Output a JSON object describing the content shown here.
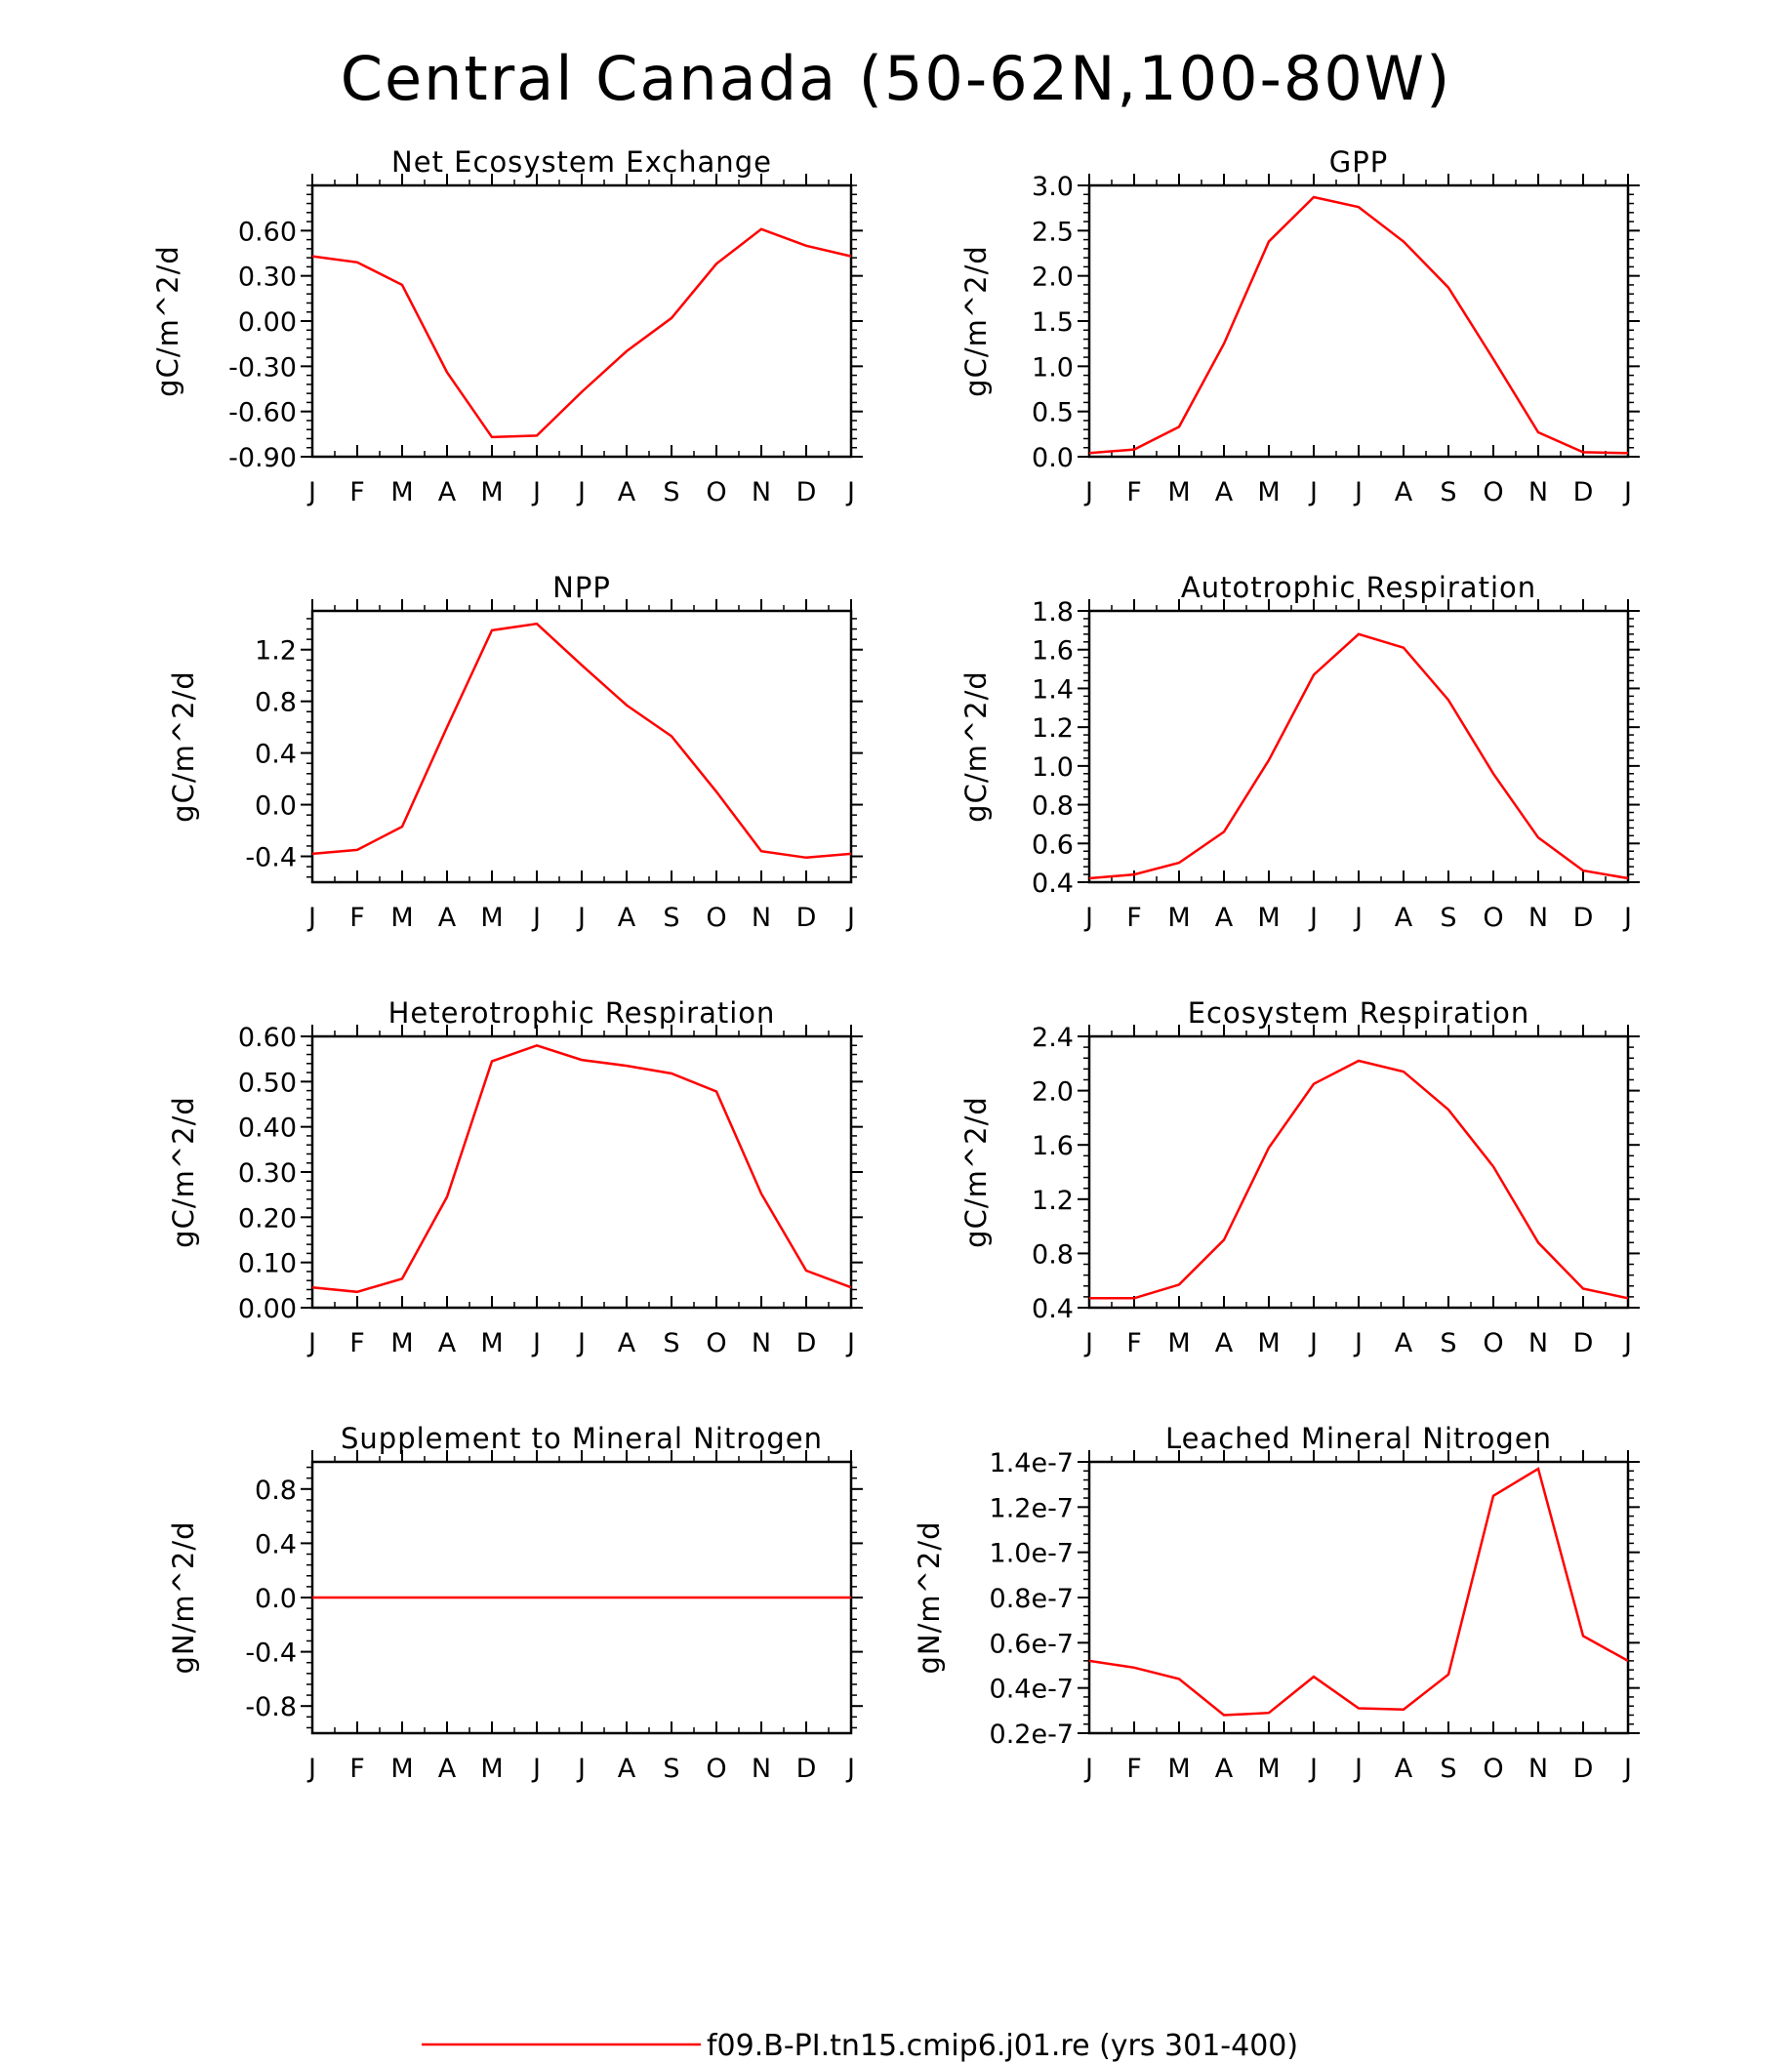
{
  "title": "Central Canada (50-62N,100-80W)",
  "legend": {
    "label": "f09.B-PI.tn15.cmip6.j01.re (yrs 301-400)",
    "color": "#ff0000"
  },
  "chart_data": [
    {
      "type": "line",
      "title": "Net Ecosystem Exchange",
      "ylabel": "gC/m^2/d",
      "xticks": [
        "J",
        "F",
        "M",
        "A",
        "M",
        "J",
        "J",
        "A",
        "S",
        "O",
        "N",
        "D",
        "J"
      ],
      "ylim": [
        -0.9,
        0.9
      ],
      "yticks": [
        -0.9,
        -0.6,
        -0.3,
        0.0,
        0.3,
        0.6
      ],
      "ytick_labels": [
        "-0.90",
        "-0.60",
        "-0.30",
        "0.00",
        "0.30",
        "0.60"
      ],
      "series": [
        {
          "values": [
            0.43,
            0.39,
            0.24,
            -0.34,
            -0.77,
            -0.76,
            -0.47,
            -0.2,
            0.02,
            0.38,
            0.61,
            0.5,
            0.43
          ]
        }
      ]
    },
    {
      "type": "line",
      "title": "GPP",
      "ylabel": "gC/m^2/d",
      "xticks": [
        "J",
        "F",
        "M",
        "A",
        "M",
        "J",
        "J",
        "A",
        "S",
        "O",
        "N",
        "D",
        "J"
      ],
      "ylim": [
        0,
        3.0
      ],
      "yticks": [
        0,
        0.5,
        1.0,
        1.5,
        2.0,
        2.5,
        3.0
      ],
      "ytick_labels": [
        "0.0",
        "0.5",
        "1.0",
        "1.5",
        "2.0",
        "2.5",
        "3.0"
      ],
      "series": [
        {
          "values": [
            0.04,
            0.08,
            0.33,
            1.25,
            2.38,
            2.87,
            2.76,
            2.38,
            1.87,
            1.08,
            0.27,
            0.05,
            0.04
          ]
        }
      ]
    },
    {
      "type": "line",
      "title": "NPP",
      "ylabel": "gC/m^2/d",
      "xticks": [
        "J",
        "F",
        "M",
        "A",
        "M",
        "J",
        "J",
        "A",
        "S",
        "O",
        "N",
        "D",
        "J"
      ],
      "ylim": [
        -0.6,
        1.5
      ],
      "yticks": [
        -0.4,
        0.0,
        0.4,
        0.8,
        1.2
      ],
      "ytick_labels": [
        "-0.4",
        "0.0",
        "0.4",
        "0.8",
        "1.2"
      ],
      "series": [
        {
          "values": [
            -0.38,
            -0.35,
            -0.17,
            0.6,
            1.35,
            1.4,
            1.08,
            0.77,
            0.53,
            0.1,
            -0.36,
            -0.41,
            -0.38
          ]
        }
      ]
    },
    {
      "type": "line",
      "title": "Autotrophic Respiration",
      "ylabel": "gC/m^2/d",
      "xticks": [
        "J",
        "F",
        "M",
        "A",
        "M",
        "J",
        "J",
        "A",
        "S",
        "O",
        "N",
        "D",
        "J"
      ],
      "ylim": [
        0.4,
        1.8
      ],
      "yticks": [
        0.4,
        0.6,
        0.8,
        1.0,
        1.2,
        1.4,
        1.6,
        1.8
      ],
      "ytick_labels": [
        "0.4",
        "0.6",
        "0.8",
        "1.0",
        "1.2",
        "1.4",
        "1.6",
        "1.8"
      ],
      "series": [
        {
          "values": [
            0.42,
            0.44,
            0.5,
            0.66,
            1.03,
            1.47,
            1.68,
            1.61,
            1.34,
            0.96,
            0.63,
            0.46,
            0.42
          ]
        }
      ]
    },
    {
      "type": "line",
      "title": "Heterotrophic Respiration",
      "ylabel": "gC/m^2/d",
      "xticks": [
        "J",
        "F",
        "M",
        "A",
        "M",
        "J",
        "J",
        "A",
        "S",
        "O",
        "N",
        "D",
        "J"
      ],
      "ylim": [
        0,
        0.6
      ],
      "yticks": [
        0,
        0.1,
        0.2,
        0.3,
        0.4,
        0.5,
        0.6
      ],
      "ytick_labels": [
        "0.00",
        "0.10",
        "0.20",
        "0.30",
        "0.40",
        "0.50",
        "0.60"
      ],
      "series": [
        {
          "values": [
            0.045,
            0.035,
            0.064,
            0.245,
            0.545,
            0.58,
            0.548,
            0.535,
            0.518,
            0.478,
            0.252,
            0.082,
            0.045
          ]
        }
      ]
    },
    {
      "type": "line",
      "title": "Ecosystem Respiration",
      "ylabel": "gC/m^2/d",
      "xticks": [
        "J",
        "F",
        "M",
        "A",
        "M",
        "J",
        "J",
        "A",
        "S",
        "O",
        "N",
        "D",
        "J"
      ],
      "ylim": [
        0.4,
        2.4
      ],
      "yticks": [
        0.4,
        0.8,
        1.2,
        1.6,
        2.0,
        2.4
      ],
      "ytick_labels": [
        "0.4",
        "0.8",
        "1.2",
        "1.6",
        "2.0",
        "2.4"
      ],
      "series": [
        {
          "values": [
            0.47,
            0.47,
            0.57,
            0.9,
            1.58,
            2.05,
            2.22,
            2.14,
            1.86,
            1.44,
            0.88,
            0.54,
            0.47
          ]
        }
      ]
    },
    {
      "type": "line",
      "title": "Supplement to Mineral Nitrogen",
      "ylabel": "gN/m^2/d",
      "xticks": [
        "J",
        "F",
        "M",
        "A",
        "M",
        "J",
        "J",
        "A",
        "S",
        "O",
        "N",
        "D",
        "J"
      ],
      "ylim": [
        -1.0,
        1.0
      ],
      "yticks": [
        -0.8,
        -0.4,
        0.0,
        0.4,
        0.8
      ],
      "ytick_labels": [
        "-0.8",
        "-0.4",
        "0.0",
        "0.4",
        "0.8"
      ],
      "series": [
        {
          "values": [
            0,
            0,
            0,
            0,
            0,
            0,
            0,
            0,
            0,
            0,
            0,
            0,
            0
          ]
        }
      ]
    },
    {
      "type": "line",
      "title": "Leached Mineral Nitrogen",
      "ylabel": "gN/m^2/d",
      "xticks": [
        "J",
        "F",
        "M",
        "A",
        "M",
        "J",
        "J",
        "A",
        "S",
        "O",
        "N",
        "D",
        "J"
      ],
      "ylim": [
        2e-08,
        1.4e-07
      ],
      "yticks": [
        2e-08,
        4e-08,
        6e-08,
        8e-08,
        1e-07,
        1.2e-07,
        1.4e-07
      ],
      "ytick_labels": [
        "0.2e-7",
        "0.4e-7",
        "0.6e-7",
        "0.8e-7",
        "1.0e-7",
        "1.2e-7",
        "1.4e-7"
      ],
      "series": [
        {
          "values": [
            5.2e-08,
            4.9e-08,
            4.4e-08,
            2.8e-08,
            2.9e-08,
            4.5e-08,
            3.1e-08,
            3.05e-08,
            4.6e-08,
            1.25e-07,
            1.37e-07,
            6.3e-08,
            5.2e-08
          ]
        }
      ]
    }
  ]
}
